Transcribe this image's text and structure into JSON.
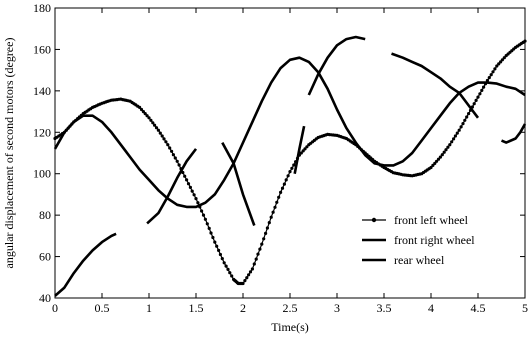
{
  "chart_data": {
    "type": "line",
    "title": "",
    "xlabel": "Time(s)",
    "ylabel": "angular displacement of second motors (degree)",
    "xlim": [
      0,
      5
    ],
    "ylim": [
      40,
      180
    ],
    "xticks": [
      "0",
      "0.5",
      "1",
      "1.5",
      "2",
      "2.5",
      "3",
      "3.5",
      "4",
      "4.5",
      "5"
    ],
    "xtick_values": [
      0,
      0.5,
      1,
      1.5,
      2,
      2.5,
      3,
      3.5,
      4,
      4.5,
      5
    ],
    "yticks": [
      "40",
      "60",
      "80",
      "100",
      "120",
      "140",
      "160",
      "180"
    ],
    "ytick_values": [
      40,
      60,
      80,
      100,
      120,
      140,
      160,
      180
    ],
    "grid": false,
    "legend_position": "bottom-right",
    "series": [
      {
        "name": "front left wheel",
        "style": "line-with-dots",
        "color": "#000000",
        "segments": [
          [
            [
              0,
              117
            ],
            [
              0.1,
              120
            ],
            [
              0.2,
              125
            ],
            [
              0.3,
              129
            ],
            [
              0.4,
              132
            ],
            [
              0.5,
              134
            ],
            [
              0.6,
              135.5
            ],
            [
              0.7,
              136
            ],
            [
              0.8,
              135
            ],
            [
              0.9,
              132
            ],
            [
              1.0,
              127
            ],
            [
              1.1,
              121
            ],
            [
              1.2,
              114
            ],
            [
              1.3,
              106
            ],
            [
              1.4,
              97
            ],
            [
              1.5,
              88
            ],
            [
              1.6,
              78
            ],
            [
              1.7,
              67
            ],
            [
              1.8,
              57
            ],
            [
              1.9,
              49
            ],
            [
              1.95,
              47
            ],
            [
              2.0,
              47
            ],
            [
              2.1,
              54
            ],
            [
              2.2,
              66
            ],
            [
              2.3,
              79
            ],
            [
              2.4,
              91
            ],
            [
              2.5,
              101
            ],
            [
              2.6,
              109
            ],
            [
              2.7,
              114
            ],
            [
              2.8,
              117.5
            ],
            [
              2.9,
              119
            ],
            [
              3.0,
              118.5
            ],
            [
              3.1,
              117
            ],
            [
              3.2,
              114
            ],
            [
              3.3,
              110
            ],
            [
              3.4,
              106
            ],
            [
              3.5,
              103
            ],
            [
              3.6,
              100.5
            ],
            [
              3.7,
              99.5
            ],
            [
              3.8,
              99
            ],
            [
              3.9,
              100
            ],
            [
              4.0,
              103
            ],
            [
              4.1,
              108
            ],
            [
              4.2,
              114
            ],
            [
              4.3,
              121
            ],
            [
              4.4,
              129
            ],
            [
              4.5,
              137
            ],
            [
              4.6,
              145
            ],
            [
              4.7,
              152
            ],
            [
              4.8,
              157
            ],
            [
              4.9,
              161
            ],
            [
              5.0,
              164
            ]
          ]
        ]
      },
      {
        "name": "front right wheel",
        "style": "thick-line",
        "color": "#000000",
        "segments": [
          [
            [
              0,
              112
            ],
            [
              0.1,
              120
            ],
            [
              0.2,
              125
            ],
            [
              0.3,
              128
            ],
            [
              0.4,
              128
            ],
            [
              0.5,
              125
            ],
            [
              0.6,
              120
            ],
            [
              0.7,
              114
            ],
            [
              0.8,
              108
            ],
            [
              0.9,
              102
            ],
            [
              1.0,
              97
            ],
            [
              1.1,
              92
            ],
            [
              1.2,
              88
            ],
            [
              1.3,
              85
            ],
            [
              1.4,
              84
            ],
            [
              1.5,
              84
            ],
            [
              1.6,
              86
            ],
            [
              1.7,
              90
            ],
            [
              1.8,
              97
            ],
            [
              1.9,
              105
            ],
            [
              2.0,
              115
            ],
            [
              2.1,
              125
            ],
            [
              2.2,
              135
            ],
            [
              2.3,
              144
            ],
            [
              2.4,
              151
            ],
            [
              2.5,
              155
            ],
            [
              2.6,
              156
            ],
            [
              2.7,
              154
            ],
            [
              2.8,
              149
            ],
            [
              2.9,
              141
            ],
            [
              3.0,
              131
            ],
            [
              3.1,
              122
            ],
            [
              3.2,
              115
            ],
            [
              3.3,
              109
            ],
            [
              3.4,
              105
            ],
            [
              3.5,
              104
            ],
            [
              3.6,
              104
            ],
            [
              3.7,
              106
            ],
            [
              3.8,
              110
            ],
            [
              3.9,
              116
            ],
            [
              4.0,
              122
            ],
            [
              4.1,
              128
            ],
            [
              4.2,
              134
            ],
            [
              4.3,
              139
            ],
            [
              4.4,
              142
            ],
            [
              4.5,
              144
            ],
            [
              4.6,
              144
            ],
            [
              4.7,
              143.5
            ],
            [
              4.8,
              142
            ],
            [
              4.9,
              141
            ],
            [
              5.0,
              138
            ]
          ]
        ]
      },
      {
        "name": "rear wheel",
        "style": "thick-line",
        "color": "#000000",
        "segments": [
          [
            [
              0,
              41
            ],
            [
              0.1,
              45
            ],
            [
              0.2,
              52
            ],
            [
              0.3,
              58
            ],
            [
              0.4,
              63
            ],
            [
              0.5,
              67
            ],
            [
              0.6,
              70
            ],
            [
              0.65,
              71
            ]
          ],
          [
            [
              0.98,
              76
            ],
            [
              1.1,
              81
            ],
            [
              1.2,
              89
            ],
            [
              1.3,
              98
            ],
            [
              1.4,
              106
            ],
            [
              1.5,
              112
            ]
          ],
          [
            [
              1.78,
              115
            ],
            [
              1.9,
              105
            ],
            [
              2.0,
              90
            ],
            [
              2.12,
              75
            ]
          ],
          [
            [
              2.55,
              100
            ],
            [
              2.6,
              112
            ],
            [
              2.65,
              123
            ]
          ],
          [
            [
              2.7,
              138
            ],
            [
              2.8,
              148
            ],
            [
              2.9,
              156
            ],
            [
              3.0,
              162
            ],
            [
              3.1,
              165
            ],
            [
              3.2,
              166
            ],
            [
              3.3,
              165
            ]
          ],
          [
            [
              3.58,
              158
            ],
            [
              3.7,
              156
            ],
            [
              3.8,
              154
            ],
            [
              3.9,
              152
            ],
            [
              4.0,
              149
            ],
            [
              4.1,
              146
            ],
            [
              4.2,
              142
            ],
            [
              4.3,
              139
            ],
            [
              4.4,
              133
            ],
            [
              4.5,
              127
            ]
          ],
          [
            [
              4.75,
              116
            ],
            [
              4.8,
              115
            ],
            [
              4.9,
              117
            ],
            [
              4.95,
              120
            ],
            [
              5.0,
              124
            ]
          ]
        ]
      }
    ]
  }
}
